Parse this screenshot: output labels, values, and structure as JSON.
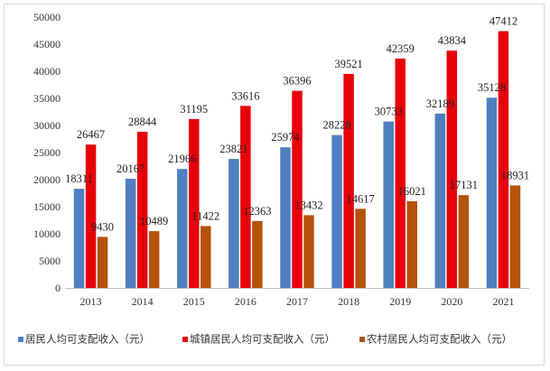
{
  "chart_data": {
    "type": "bar",
    "categories": [
      "2013",
      "2014",
      "2015",
      "2016",
      "2017",
      "2018",
      "2019",
      "2020",
      "2021"
    ],
    "series": [
      {
        "name": "居民人均可支配收入（元）",
        "color": "#4f7fc0",
        "values": [
          18311,
          20167,
          21966,
          23821,
          25974,
          28228,
          30733,
          32189,
          35128
        ]
      },
      {
        "name": "城镇居民人均可支配收入（元）",
        "color": "#e8000b",
        "values": [
          26467,
          28844,
          31195,
          33616,
          36396,
          39521,
          42359,
          43834,
          47412
        ]
      },
      {
        "name": "农村居民人均可支配收入（元）",
        "color": "#b5520b",
        "values": [
          9430,
          10489,
          11422,
          12363,
          13432,
          14617,
          16021,
          17131,
          18931
        ]
      }
    ],
    "data_labels": [
      [
        "18311",
        "20167",
        "21966",
        "23821",
        "25974",
        "28228",
        "30733",
        "32189",
        "35128"
      ],
      [
        "26467",
        "28844",
        "31195",
        "33616",
        "36396",
        "39521",
        "42359",
        "43834",
        "47412"
      ],
      [
        "9430",
        "10489",
        "11422",
        "12363",
        "13432",
        "14617",
        "16021",
        "17131",
        "18931"
      ]
    ],
    "yticks": [
      "0",
      "5000",
      "10000",
      "15000",
      "20000",
      "25000",
      "30000",
      "35000",
      "40000",
      "45000",
      "50000"
    ],
    "ylim": [
      0,
      50000
    ],
    "grid": false,
    "legend_position": "bottom"
  }
}
